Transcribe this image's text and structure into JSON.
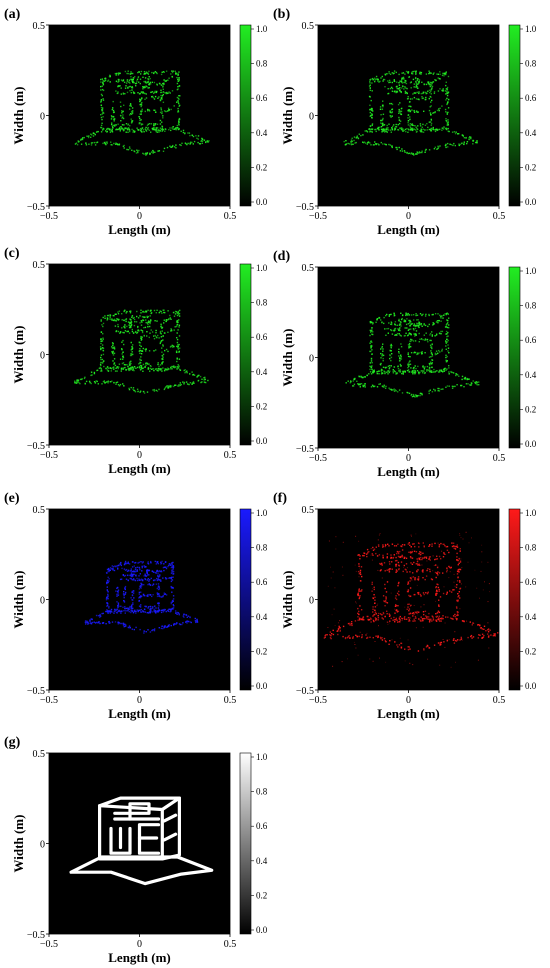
{
  "chart_data": [
    {
      "panel": "(a)",
      "type": "heatmap",
      "colormap": {
        "low": "#000000",
        "high": "#22ee22"
      },
      "xlabel": "Length (m)",
      "ylabel": "Width (m)",
      "xlim": [
        -0.5,
        0.5
      ],
      "ylim": [
        -0.5,
        0.5
      ],
      "x_ticks": [
        "−0.5",
        "0",
        "0.5"
      ],
      "y_ticks": [
        "0.5",
        "0",
        "−0.5"
      ],
      "colorbar_ticks": [
        "1.0",
        "0.8",
        "0.6",
        "0.4",
        "0.2",
        "0.0"
      ],
      "colorbar_range": [
        0,
        1
      ],
      "scale": 1.0
    },
    {
      "panel": "(b)",
      "type": "heatmap",
      "colormap": {
        "low": "#000000",
        "high": "#22ee22"
      },
      "xlabel": "Length (m)",
      "ylabel": "Width (m)",
      "xlim": [
        -0.5,
        0.5
      ],
      "ylim": [
        -0.5,
        0.5
      ],
      "x_ticks": [
        "−0.5",
        "0",
        "0.5"
      ],
      "y_ticks": [
        "0.5",
        "0",
        "−0.5"
      ],
      "colorbar_ticks": [
        "1.0",
        "0.8",
        "0.6",
        "0.4",
        "0.2",
        "0.0"
      ],
      "colorbar_range": [
        0,
        1
      ],
      "scale": 1.0
    },
    {
      "panel": "(c)",
      "type": "heatmap",
      "colormap": {
        "low": "#000000",
        "high": "#22ee22"
      },
      "xlabel": "Length (m)",
      "ylabel": "Width (m)",
      "xlim": [
        -0.5,
        0.5
      ],
      "ylim": [
        -0.5,
        0.5
      ],
      "x_ticks": [
        "−0.5",
        "0",
        "0.5"
      ],
      "y_ticks": [
        "0.5",
        "0",
        "−0.5"
      ],
      "colorbar_ticks": [
        "1.0",
        "0.8",
        "0.6",
        "0.4",
        "0.2",
        "0.0"
      ],
      "colorbar_range": [
        0,
        1
      ],
      "scale": 1.0
    },
    {
      "panel": "(d)",
      "type": "heatmap",
      "colormap": {
        "low": "#000000",
        "high": "#22ee22"
      },
      "xlabel": "Length (m)",
      "ylabel": "Width (m)",
      "xlim": [
        -0.5,
        0.5
      ],
      "ylim": [
        -0.5,
        0.5
      ],
      "x_ticks": [
        "−0.5",
        "0",
        "0.5"
      ],
      "y_ticks": [
        "0.5",
        "0",
        "−0.5"
      ],
      "colorbar_ticks": [
        "1.0",
        "0.8",
        "0.6",
        "0.4",
        "0.2",
        "0.0"
      ],
      "colorbar_range": [
        0,
        1
      ],
      "scale": 1.0
    },
    {
      "panel": "(e)",
      "type": "heatmap",
      "colormap": {
        "low": "#000000",
        "high": "#1a1aff"
      },
      "xlabel": "Length (m)",
      "ylabel": "Width (m)",
      "xlim": [
        -0.5,
        0.5
      ],
      "ylim": [
        -0.5,
        0.5
      ],
      "x_ticks": [
        "−0.5",
        "0",
        "0.5"
      ],
      "y_ticks": [
        "0.5",
        "0",
        "−0.5"
      ],
      "colorbar_ticks": [
        "1.0",
        "0.8",
        "0.6",
        "0.4",
        "0.2",
        "0.0"
      ],
      "colorbar_range": [
        0,
        1
      ],
      "scale": 0.85
    },
    {
      "panel": "(f)",
      "type": "heatmap",
      "colormap": {
        "low": "#000000",
        "high": "#ff1a1a"
      },
      "xlabel": "Length (m)",
      "ylabel": "Width (m)",
      "xlim": [
        -0.5,
        0.5
      ],
      "ylim": [
        -0.5,
        0.5
      ],
      "x_ticks": [
        "−0.5",
        "0",
        "0.5"
      ],
      "y_ticks": [
        "0.5",
        "0",
        "−0.5"
      ],
      "colorbar_ticks": [
        "1.0",
        "0.8",
        "0.6",
        "0.4",
        "0.2",
        "0.0"
      ],
      "colorbar_range": [
        0,
        1
      ],
      "scale": 1.3
    },
    {
      "panel": "(g)",
      "type": "heatmap",
      "colormap": {
        "low": "#000000",
        "high": "#ffffff"
      },
      "xlabel": "Length (m)",
      "ylabel": "Width (m)",
      "xlim": [
        -0.5,
        0.5
      ],
      "ylim": [
        -0.5,
        0.5
      ],
      "x_ticks": [
        "−0.5",
        "0",
        "0.5"
      ],
      "y_ticks": [
        "0.5",
        "0",
        "−0.5"
      ],
      "colorbar_ticks": [
        "1.0",
        "0.8",
        "0.6",
        "0.4",
        "0.2",
        "0.0"
      ],
      "colorbar_range": [
        0,
        1
      ],
      "scale": 1.05
    }
  ]
}
